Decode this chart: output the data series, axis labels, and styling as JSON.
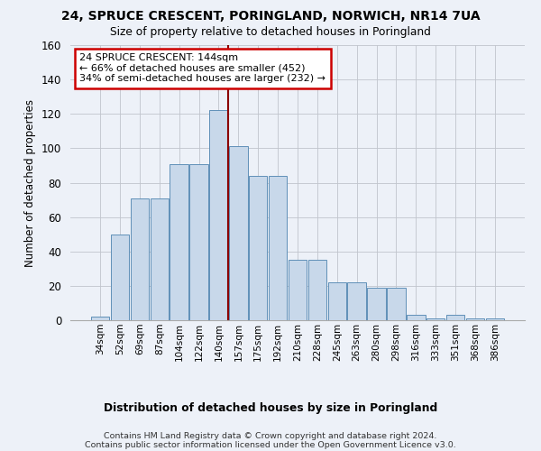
{
  "title": "24, SPRUCE CRESCENT, PORINGLAND, NORWICH, NR14 7UA",
  "subtitle": "Size of property relative to detached houses in Poringland",
  "xlabel": "Distribution of detached houses by size in Poringland",
  "ylabel": "Number of detached properties",
  "bar_color": "#c8d8ea",
  "bar_edge_color": "#6090b8",
  "categories": [
    "34sqm",
    "52sqm",
    "69sqm",
    "87sqm",
    "104sqm",
    "122sqm",
    "140sqm",
    "157sqm",
    "175sqm",
    "192sqm",
    "210sqm",
    "228sqm",
    "245sqm",
    "263sqm",
    "280sqm",
    "298sqm",
    "316sqm",
    "333sqm",
    "351sqm",
    "368sqm",
    "386sqm"
  ],
  "bar_heights": [
    2,
    50,
    71,
    71,
    91,
    91,
    122,
    101,
    84,
    84,
    35,
    35,
    22,
    22,
    19,
    19,
    3,
    1,
    3,
    1,
    1
  ],
  "ylim": [
    0,
    160
  ],
  "yticks": [
    0,
    20,
    40,
    60,
    80,
    100,
    120,
    140,
    160
  ],
  "vline_x": 6.5,
  "annotation_line1": "24 SPRUCE CRESCENT: 144sqm",
  "annotation_line2": "← 66% of detached houses are smaller (452)",
  "annotation_line3": "34% of semi-detached houses are larger (232) →",
  "footer1": "Contains HM Land Registry data © Crown copyright and database right 2024.",
  "footer2": "Contains public sector information licensed under the Open Government Licence v3.0.",
  "bg_color": "#edf1f8"
}
